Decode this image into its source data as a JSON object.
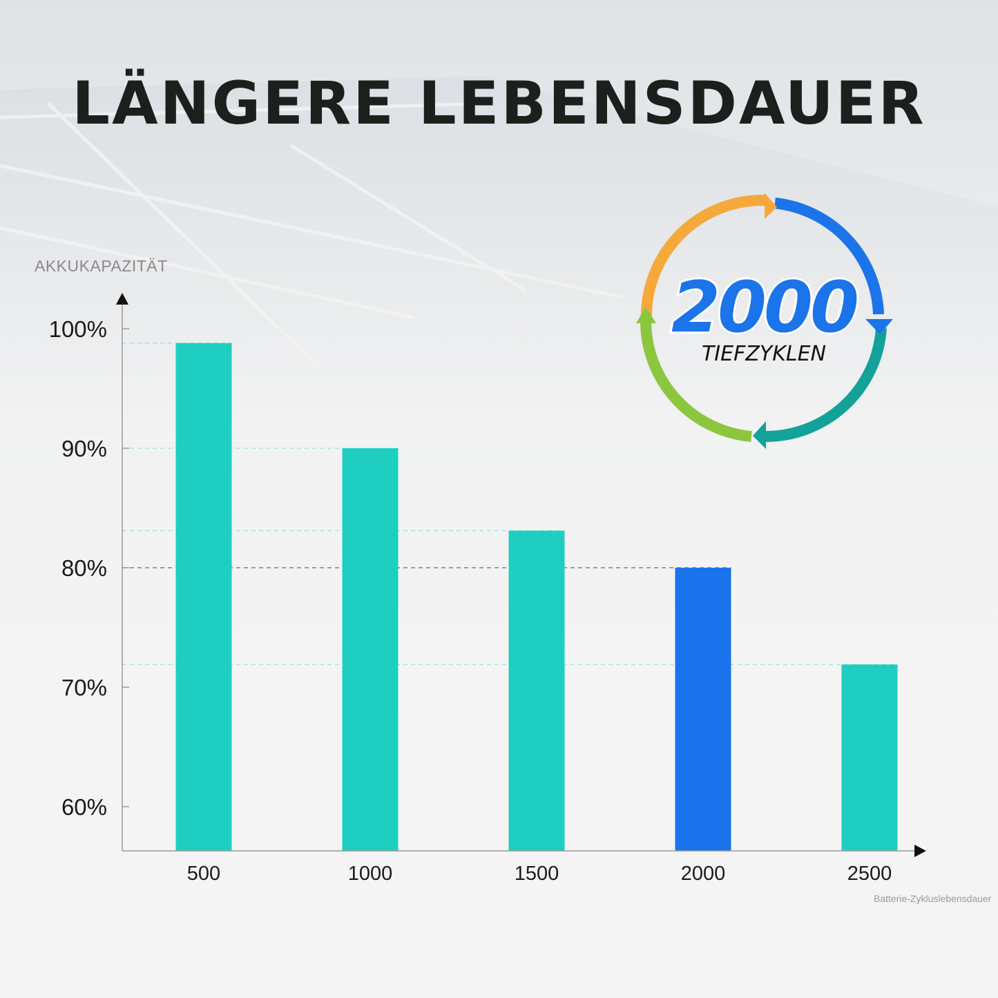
{
  "title": "LÄNGERE LEBENSDAUER",
  "badge": {
    "number": "2000",
    "label": "TIEFZYKLEN",
    "ring_colors": [
      "#f5a93a",
      "#1b74ea",
      "#13a29a",
      "#8cc63f"
    ]
  },
  "chart_data": {
    "type": "bar",
    "ylabel": "AKKUKAPAZITÄT",
    "xlabel": "Batterie-Zykluslebensdauer",
    "categories": [
      "500",
      "1000",
      "1500",
      "2000",
      "2500"
    ],
    "values": [
      98.8,
      90,
      83.1,
      80,
      71.9
    ],
    "highlight_index": 3,
    "ylim": [
      56.3,
      100
    ],
    "yticks": [
      100,
      90,
      80,
      70,
      60
    ],
    "ytick_labels": [
      "100%",
      "90%",
      "80%",
      "70%",
      "60%"
    ],
    "bar_color": "#1ecfc1",
    "highlight_color": "#1a73ea",
    "grid": false
  }
}
